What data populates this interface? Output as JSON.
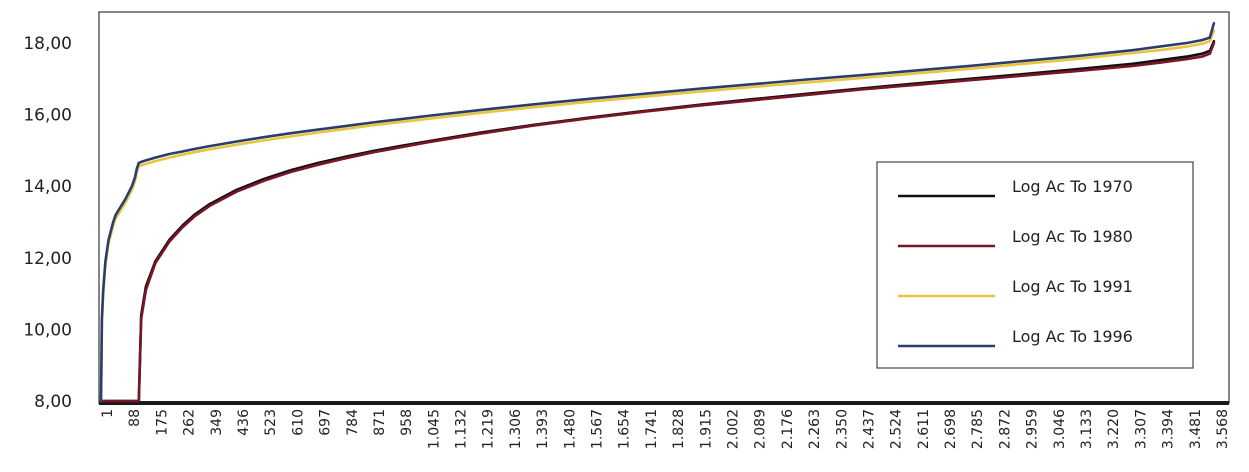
{
  "chart_data": {
    "type": "line",
    "title": "",
    "xlabel": "",
    "ylabel": "",
    "ylim": [
      8,
      18.5
    ],
    "y_ticks": [
      "8,00",
      "10,00",
      "12,00",
      "14,00",
      "16,00",
      "18,00"
    ],
    "x_tick_labels": [
      "1",
      "88",
      "175",
      "262",
      "349",
      "436",
      "523",
      "610",
      "697",
      "784",
      "871",
      "958",
      "1.045",
      "1.132",
      "1.219",
      "1.306",
      "1.393",
      "1.480",
      "1.567",
      "1.654",
      "1.741",
      "1.828",
      "1.915",
      "2.002",
      "2.089",
      "2.176",
      "2.263",
      "2.350",
      "2.437",
      "2.524",
      "2.611",
      "2.698",
      "2.785",
      "2.872",
      "2.959",
      "3.046",
      "3.133",
      "3.220",
      "3.307",
      "3.394",
      "3.481",
      "3.568"
    ],
    "xlim": [
      1,
      3610
    ],
    "grid": false,
    "legend_position": "right",
    "series": [
      {
        "name": "Log Ac To 1970",
        "color": "#111111",
        "x": [
          1,
          40,
          48,
          80,
          100,
          110,
          116,
          122,
          130,
          145,
          175,
          220,
          262,
          300,
          349,
          436,
          523,
          610,
          697,
          784,
          871,
          958,
          1045,
          1219,
          1393,
          1567,
          1741,
          1915,
          2089,
          2263,
          2437,
          2611,
          2785,
          2959,
          3133,
          3307,
          3394,
          3481,
          3530,
          3555,
          3568
        ],
        "y": [
          8.0,
          8.0,
          8.0,
          8.0,
          8.0,
          8.0,
          8.0,
          8.0,
          10.4,
          11.2,
          11.9,
          12.5,
          12.9,
          13.2,
          13.5,
          13.9,
          14.2,
          14.45,
          14.65,
          14.82,
          14.98,
          15.12,
          15.25,
          15.5,
          15.72,
          15.92,
          16.1,
          16.27,
          16.43,
          16.58,
          16.73,
          16.87,
          17.0,
          17.13,
          17.27,
          17.42,
          17.52,
          17.62,
          17.7,
          17.78,
          18.05
        ]
      },
      {
        "name": "Log Ac To 1980",
        "color": "#7a1426",
        "x": [
          1,
          40,
          48,
          80,
          100,
          110,
          116,
          122,
          130,
          145,
          175,
          220,
          262,
          300,
          349,
          436,
          523,
          610,
          697,
          784,
          871,
          958,
          1045,
          1219,
          1393,
          1567,
          1741,
          1915,
          2089,
          2263,
          2437,
          2611,
          2785,
          2959,
          3133,
          3307,
          3394,
          3481,
          3530,
          3555,
          3568
        ],
        "y": [
          8.0,
          8.0,
          8.0,
          8.0,
          8.0,
          8.0,
          8.0,
          8.0,
          10.3,
          11.1,
          11.85,
          12.45,
          12.85,
          13.15,
          13.45,
          13.85,
          14.15,
          14.4,
          14.6,
          14.78,
          14.94,
          15.08,
          15.22,
          15.47,
          15.7,
          15.9,
          16.08,
          16.25,
          16.4,
          16.55,
          16.7,
          16.83,
          16.96,
          17.09,
          17.22,
          17.36,
          17.45,
          17.55,
          17.62,
          17.7,
          18.0
        ]
      },
      {
        "name": "Log Ac To 1991",
        "color": "#e8c53c",
        "x": [
          1,
          4,
          8,
          15,
          25,
          40,
          48,
          80,
          100,
          110,
          116,
          122,
          130,
          145,
          175,
          220,
          262,
          300,
          349,
          436,
          523,
          610,
          697,
          784,
          871,
          958,
          1045,
          1219,
          1393,
          1567,
          1741,
          1915,
          2089,
          2263,
          2437,
          2611,
          2785,
          2959,
          3133,
          3307,
          3394,
          3481,
          3530,
          3555,
          3568
        ],
        "y": [
          8.0,
          10.2,
          11.0,
          11.8,
          12.4,
          12.9,
          13.1,
          13.55,
          13.9,
          14.15,
          14.4,
          14.55,
          14.58,
          14.62,
          14.7,
          14.8,
          14.88,
          14.95,
          15.03,
          15.16,
          15.28,
          15.39,
          15.5,
          15.6,
          15.7,
          15.79,
          15.88,
          16.05,
          16.21,
          16.36,
          16.5,
          16.64,
          16.77,
          16.9,
          17.02,
          17.15,
          17.28,
          17.42,
          17.56,
          17.72,
          17.8,
          17.9,
          17.98,
          18.05,
          18.35
        ]
      },
      {
        "name": "Log Ac To 1996",
        "color": "#2a3d6e",
        "x": [
          1,
          4,
          8,
          15,
          25,
          40,
          48,
          80,
          100,
          110,
          116,
          122,
          130,
          145,
          175,
          220,
          262,
          300,
          349,
          436,
          523,
          610,
          697,
          784,
          871,
          958,
          1045,
          1219,
          1393,
          1567,
          1741,
          1915,
          2089,
          2263,
          2437,
          2611,
          2785,
          2959,
          3133,
          3307,
          3394,
          3481,
          3530,
          3555,
          3568
        ],
        "y": [
          8.0,
          10.3,
          11.1,
          11.9,
          12.5,
          13.0,
          13.2,
          13.65,
          14.0,
          14.25,
          14.5,
          14.65,
          14.68,
          14.72,
          14.8,
          14.9,
          14.97,
          15.04,
          15.12,
          15.25,
          15.37,
          15.48,
          15.58,
          15.68,
          15.78,
          15.87,
          15.96,
          16.13,
          16.29,
          16.44,
          16.58,
          16.72,
          16.85,
          16.98,
          17.1,
          17.23,
          17.36,
          17.5,
          17.64,
          17.8,
          17.9,
          18.0,
          18.08,
          18.15,
          18.55
        ]
      }
    ]
  }
}
